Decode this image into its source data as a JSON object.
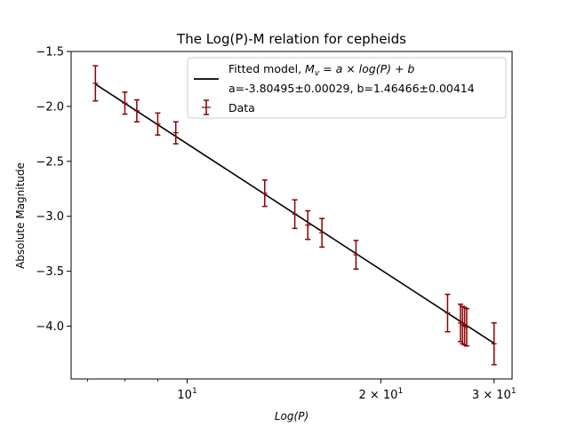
{
  "chart_data": {
    "type": "scatter",
    "title": "The Log(P)-M relation for cepheids",
    "xlabel": "Log(P)",
    "ylabel": "Absolute Magnitude",
    "xscale": "log",
    "xlim": [
      6.6,
      32
    ],
    "ylim": [
      -4.48,
      -1.5
    ],
    "x_ticks": [
      {
        "value": 10,
        "base": "10",
        "exp": "1"
      },
      {
        "value": 20,
        "base": "2 × 10",
        "exp": "1"
      },
      {
        "value": 30,
        "base": "3 × 10",
        "exp": "1"
      }
    ],
    "x_minor_ticks": [
      7,
      8,
      9,
      40
    ],
    "y_ticks": [
      {
        "value": -1.5,
        "label": "−1.5"
      },
      {
        "value": -2.0,
        "label": "−2.0"
      },
      {
        "value": -2.5,
        "label": "−2.5"
      },
      {
        "value": -3.0,
        "label": "−3.0"
      },
      {
        "value": -3.5,
        "label": "−3.5"
      },
      {
        "value": -4.0,
        "label": "−4.0"
      }
    ],
    "grid": false,
    "legend_position": "top-right",
    "model": {
      "name_prefix": "Fitted model, ",
      "name_formula": "M",
      "name_formula_sub": "v",
      "name_formula_rest": " = a × log(P) + b",
      "params_label": "a=-3.80495±0.00029, b=1.46466±0.00414",
      "a": -3.80495,
      "b": 1.46466,
      "x_range": [
        7.2,
        30.0
      ],
      "color": "#000000"
    },
    "series": [
      {
        "name": "Data",
        "color": "#8b0000",
        "points": [
          {
            "x": 7.2,
            "y": -1.79,
            "err": 0.16
          },
          {
            "x": 8.0,
            "y": -1.97,
            "err": 0.1
          },
          {
            "x": 8.35,
            "y": -2.04,
            "err": 0.1
          },
          {
            "x": 9.0,
            "y": -2.16,
            "err": 0.1
          },
          {
            "x": 9.6,
            "y": -2.24,
            "err": 0.1
          },
          {
            "x": 13.2,
            "y": -2.79,
            "err": 0.12
          },
          {
            "x": 14.7,
            "y": -2.98,
            "err": 0.13
          },
          {
            "x": 15.4,
            "y": -3.08,
            "err": 0.13
          },
          {
            "x": 16.2,
            "y": -3.15,
            "err": 0.13
          },
          {
            "x": 18.3,
            "y": -3.35,
            "err": 0.13
          },
          {
            "x": 25.4,
            "y": -3.88,
            "err": 0.17
          },
          {
            "x": 26.6,
            "y": -3.97,
            "err": 0.17
          },
          {
            "x": 26.8,
            "y": -3.99,
            "err": 0.17
          },
          {
            "x": 27.0,
            "y": -4.0,
            "err": 0.17
          },
          {
            "x": 27.2,
            "y": -4.01,
            "err": 0.17
          },
          {
            "x": 30.0,
            "y": -4.16,
            "err": 0.19
          }
        ]
      }
    ]
  }
}
